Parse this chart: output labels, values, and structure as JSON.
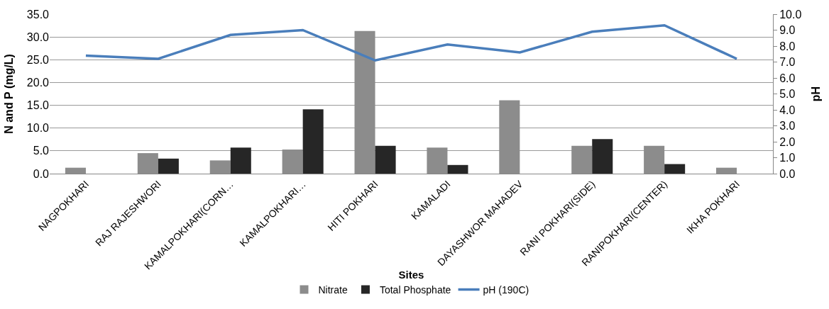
{
  "chart_data": {
    "type": "bar",
    "xlabel": "Sites",
    "ylabel": "N and P (mg/L)",
    "y2label": "pH",
    "categories": [
      "NAGPOKHARI",
      "RAJ RAJESHWORI",
      "KAMALPOKHARI(CORN…",
      "KAMALPOKHARI…",
      "HITI POKHARI",
      "KAMALADI",
      "DAYASHWOR MAHADEV",
      "RANI POKHARI(SIDE)",
      "RANIPOKHARI(CENTER)",
      "IKHA POKHARI"
    ],
    "series": [
      {
        "name": "Nitrate",
        "color": "#8c8c8c",
        "values": [
          1.3,
          4.5,
          2.9,
          5.3,
          31.3,
          5.7,
          16.1,
          6.1,
          6.1,
          1.3
        ]
      },
      {
        "name": "Total Phosphate",
        "color": "#262626",
        "values": [
          null,
          3.3,
          5.7,
          14.1,
          6.1,
          1.9,
          null,
          7.6,
          2.1,
          null
        ]
      },
      {
        "name": "pH (190C)",
        "type": "line",
        "axis": "y2",
        "color": "#4a7ebb",
        "values": [
          7.4,
          7.2,
          8.7,
          9.0,
          7.1,
          8.1,
          7.6,
          8.9,
          9.3,
          7.2
        ]
      }
    ],
    "ylim": [
      0,
      35
    ],
    "yticks": [
      {
        "value": 0,
        "label": "0.0"
      },
      {
        "value": 5,
        "label": "5.0"
      },
      {
        "value": 10,
        "label": "10.0"
      },
      {
        "value": 15,
        "label": "15.0"
      },
      {
        "value": 20,
        "label": "20.0"
      },
      {
        "value": 25,
        "label": "25.0"
      },
      {
        "value": 30,
        "label": "30.0"
      },
      {
        "value": 35,
        "label": "35.0"
      }
    ],
    "y2lim": [
      0,
      10
    ],
    "y2ticks": [
      {
        "value": 0,
        "label": "0.0"
      },
      {
        "value": 1,
        "label": "1.0"
      },
      {
        "value": 2,
        "label": "2.0"
      },
      {
        "value": 3,
        "label": "3.0"
      },
      {
        "value": 4,
        "label": "4.0"
      },
      {
        "value": 5,
        "label": "5.0"
      },
      {
        "value": 6,
        "label": "6.0"
      },
      {
        "value": 7,
        "label": "7.0"
      },
      {
        "value": 8,
        "label": "8.0"
      },
      {
        "value": 9,
        "label": "9.0"
      },
      {
        "value": 10,
        "label": "10.0"
      }
    ],
    "grid": "y",
    "legend": "bottom",
    "marker": "none",
    "line_style": "solid"
  }
}
